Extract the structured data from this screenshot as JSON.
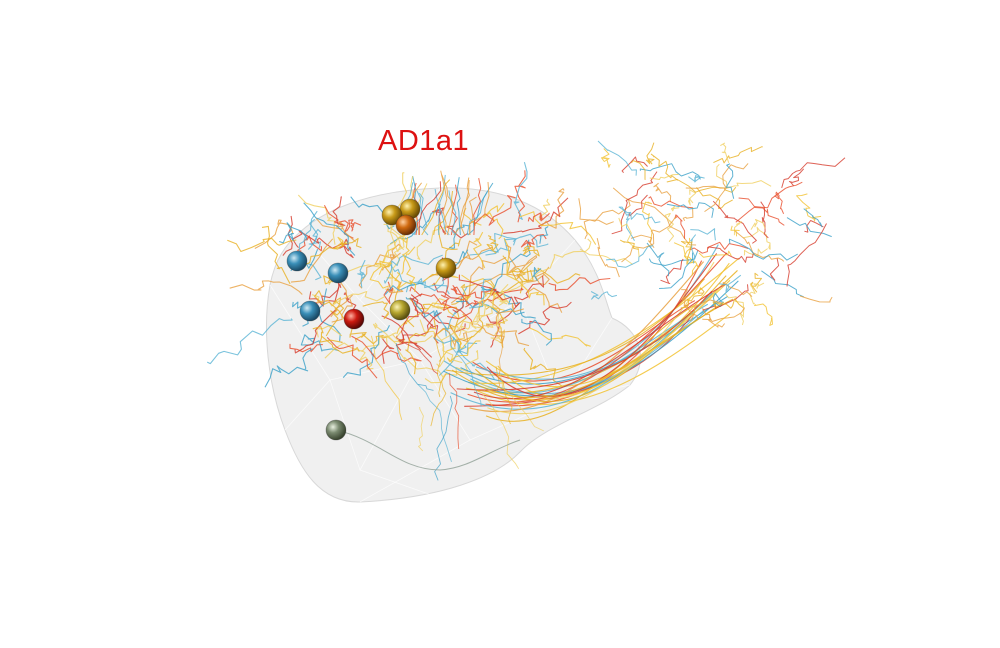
{
  "title": "AD1a1",
  "colors": {
    "background": "#ffffff",
    "title": "#dd1111",
    "mesh_fill": "#ededed",
    "mesh_stroke": "#d8d8d8",
    "neurite_palette": [
      "#f2c230",
      "#e8b020",
      "#e84c2a",
      "#d63a2a",
      "#3aa0c8",
      "#5ab4d4",
      "#e8a040",
      "#f0d060"
    ],
    "soma_blue": "#3a8fb8",
    "soma_gold": "#c89a18",
    "soma_orange": "#d06a10",
    "soma_red": "#cc1a10",
    "soma_olive": "#b8a830",
    "soma_gray": "#7a8a70"
  },
  "somata": [
    {
      "id": "soma-1",
      "color": "soma_blue"
    },
    {
      "id": "soma-2",
      "color": "soma_blue"
    },
    {
      "id": "soma-3",
      "color": "soma_blue"
    },
    {
      "id": "soma-4",
      "color": "soma_gold"
    },
    {
      "id": "soma-5",
      "color": "soma_gold"
    },
    {
      "id": "soma-6",
      "color": "soma_orange"
    },
    {
      "id": "soma-7",
      "color": "soma_gold"
    },
    {
      "id": "soma-8",
      "color": "soma_olive"
    },
    {
      "id": "soma-9",
      "color": "soma_red"
    },
    {
      "id": "soma-10",
      "color": "soma_gray"
    }
  ]
}
